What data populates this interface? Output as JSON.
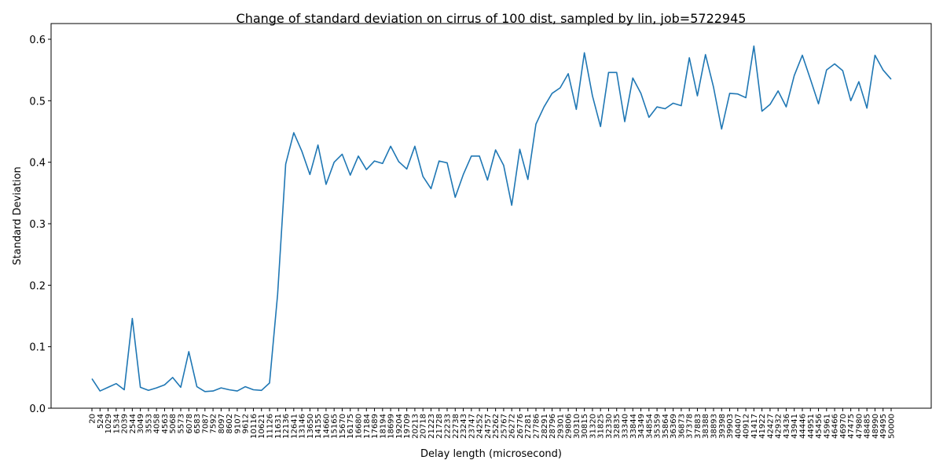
{
  "chart_data": {
    "type": "line",
    "title": "Change of standard deviation on cirrus of 100 dist, sampled by lin, job=5722945",
    "xlabel": "Delay length (microsecond)",
    "ylabel": "Standard Deviation",
    "ylim": [
      0,
      0.6
    ],
    "yticks": [
      "0.0",
      "0.1",
      "0.2",
      "0.3",
      "0.4",
      "0.5",
      "0.6"
    ],
    "grid": false,
    "line_color": "#1f77b4",
    "categories": [
      "20",
      "524",
      "1029",
      "1534",
      "2039",
      "2544",
      "3049",
      "3553",
      "4058",
      "4563",
      "5068",
      "5573",
      "6078",
      "6583",
      "7087",
      "7592",
      "8097",
      "8602",
      "9107",
      "9612",
      "10116",
      "10621",
      "11126",
      "11631",
      "12136",
      "12641",
      "13146",
      "13650",
      "14155",
      "14660",
      "15165",
      "15670",
      "16175",
      "16680",
      "17184",
      "17689",
      "18194",
      "18699",
      "19204",
      "19709",
      "20213",
      "20718",
      "21223",
      "21728",
      "22233",
      "22738",
      "23243",
      "23747",
      "24252",
      "24757",
      "25262",
      "25767",
      "26272",
      "26776",
      "27281",
      "27786",
      "28291",
      "28796",
      "29301",
      "29806",
      "30310",
      "30815",
      "31320",
      "31825",
      "32330",
      "32835",
      "33340",
      "33844",
      "34349",
      "34854",
      "35359",
      "35864",
      "36369",
      "36873",
      "37378",
      "37883",
      "38388",
      "38893",
      "39398",
      "39903",
      "40407",
      "40912",
      "41417",
      "41922",
      "42427",
      "42932",
      "43436",
      "43941",
      "44446",
      "44951",
      "45456",
      "45961",
      "46466",
      "46970",
      "47475",
      "47980",
      "48485",
      "48990",
      "49495",
      "50000"
    ],
    "values": [
      0.048,
      0.028,
      0.034,
      0.04,
      0.03,
      0.146,
      0.034,
      0.029,
      0.033,
      0.038,
      0.05,
      0.034,
      0.092,
      0.035,
      0.027,
      0.028,
      0.033,
      0.03,
      0.028,
      0.035,
      0.03,
      0.029,
      0.041,
      0.185,
      0.397,
      0.448,
      0.418,
      0.38,
      0.428,
      0.364,
      0.4,
      0.413,
      0.379,
      0.41,
      0.388,
      0.402,
      0.398,
      0.426,
      0.401,
      0.389,
      0.426,
      0.377,
      0.357,
      0.402,
      0.399,
      0.343,
      0.38,
      0.41,
      0.41,
      0.371,
      0.42,
      0.395,
      0.33,
      0.421,
      0.372,
      0.462,
      0.49,
      0.512,
      0.521,
      0.544,
      0.486,
      0.578,
      0.508,
      0.458,
      0.546,
      0.546,
      0.466,
      0.537,
      0.512,
      0.473,
      0.49,
      0.487,
      0.496,
      0.492,
      0.57,
      0.508,
      0.575,
      0.522,
      0.454,
      0.512,
      0.511,
      0.505,
      0.589,
      0.483,
      0.494,
      0.516,
      0.49,
      0.541,
      0.574,
      0.535,
      0.495,
      0.55,
      0.56,
      0.549,
      0.5,
      0.531,
      0.488,
      0.574,
      0.55,
      0.535
    ]
  }
}
